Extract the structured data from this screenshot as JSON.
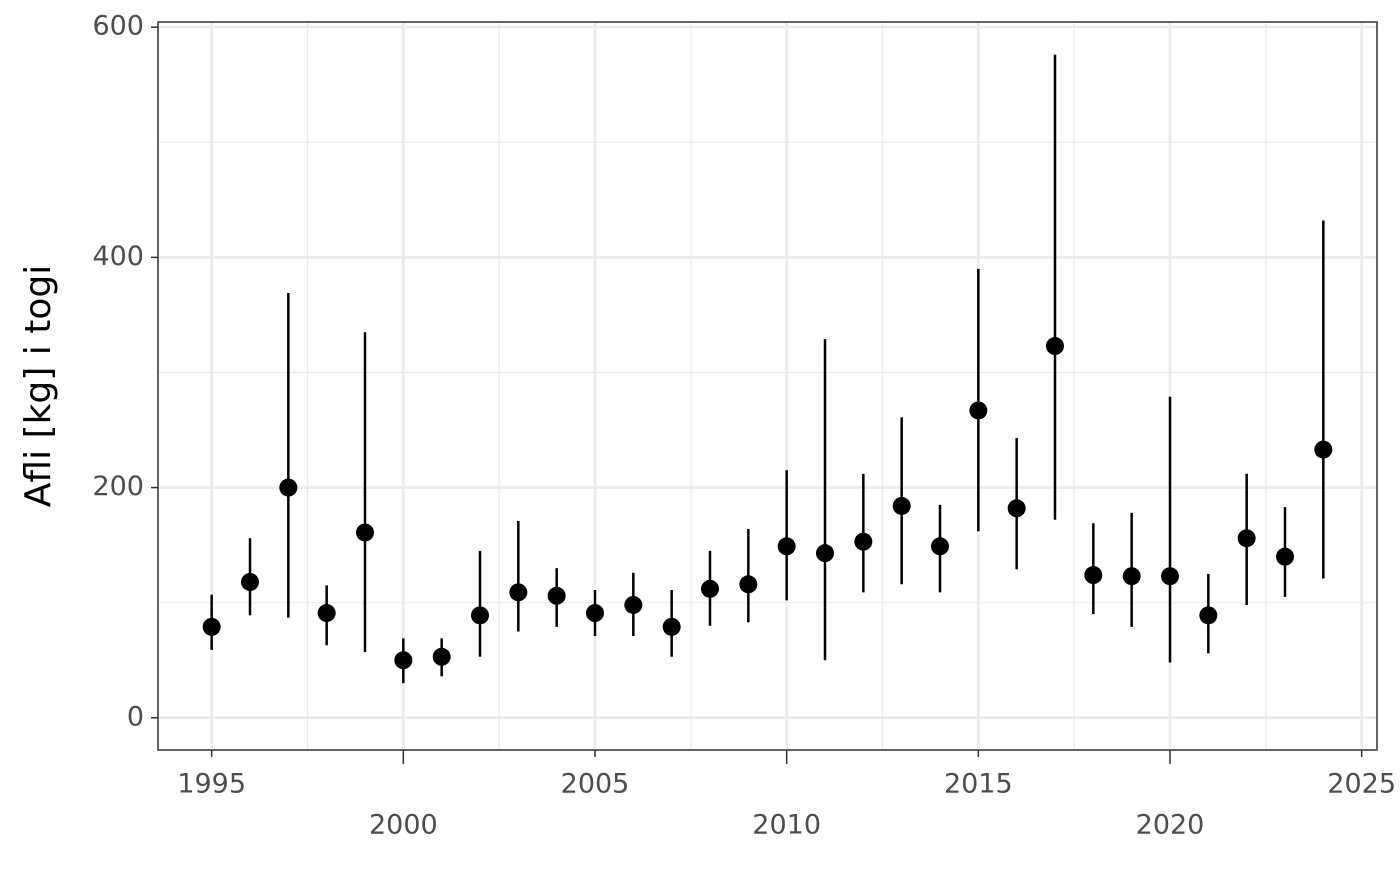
{
  "chart_data": {
    "type": "errorbar",
    "ylabel": "Afli [kg] i togi",
    "x": [
      1995,
      1996,
      1997,
      1998,
      1999,
      2000,
      2001,
      2002,
      2003,
      2004,
      2005,
      2006,
      2007,
      2008,
      2009,
      2010,
      2011,
      2012,
      2013,
      2014,
      2015,
      2016,
      2017,
      2018,
      2019,
      2020,
      2021,
      2022,
      2023,
      2024
    ],
    "values": [
      79,
      118,
      200,
      91,
      161,
      50,
      53,
      89,
      109,
      106,
      91,
      98,
      79,
      112,
      116,
      149,
      143,
      153,
      184,
      149,
      267,
      182,
      323,
      124,
      123,
      123,
      89,
      156,
      140,
      233
    ],
    "lower": [
      59,
      89,
      87,
      63,
      57,
      30,
      36,
      53,
      75,
      79,
      71,
      71,
      53,
      80,
      83,
      102,
      50,
      109,
      116,
      109,
      162,
      129,
      172,
      90,
      79,
      48,
      56,
      98,
      105,
      121
    ],
    "upper": [
      107,
      156,
      369,
      115,
      335,
      69,
      69,
      145,
      171,
      130,
      111,
      126,
      111,
      145,
      164,
      215,
      329,
      212,
      261,
      185,
      390,
      243,
      576,
      169,
      178,
      279,
      125,
      212,
      183,
      432
    ],
    "color": "#000000",
    "xlim": [
      1993.6,
      2025.4
    ],
    "xticks": [
      1995,
      2000,
      2005,
      2010,
      2015,
      2020,
      2025
    ],
    "ylim": [
      -28,
      604.5
    ],
    "yticks": [
      0,
      200,
      400,
      600
    ],
    "grid": true
  }
}
